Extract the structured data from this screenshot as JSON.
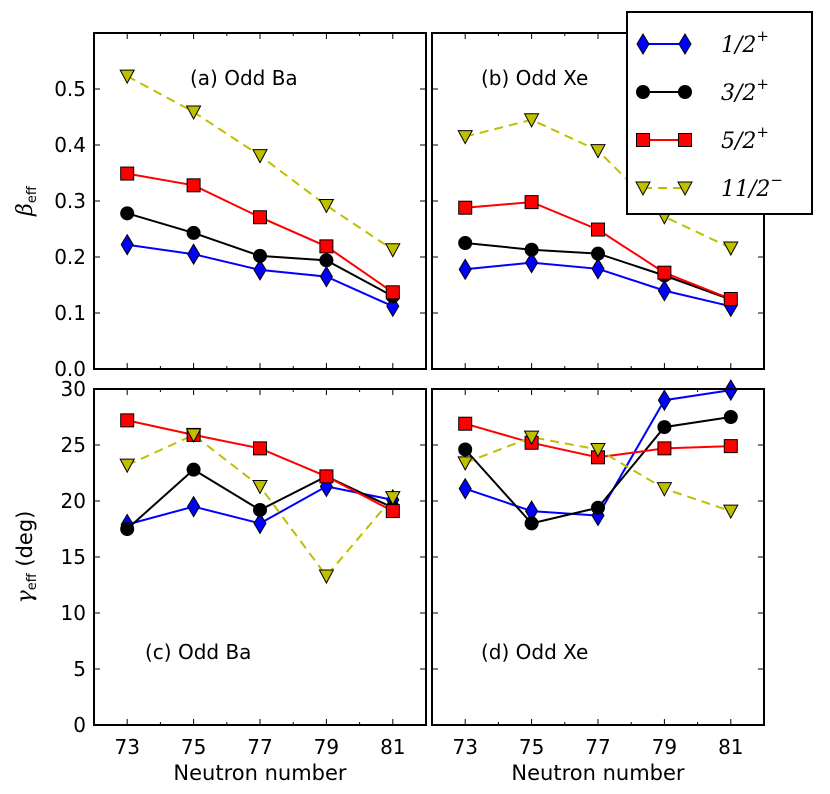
{
  "chart_data": [
    {
      "type": "line",
      "panel": "a",
      "panel_label": "(a) Odd Ba",
      "quantity": "beta",
      "ylabel_symbol": "β",
      "ylabel_sub": "eff",
      "ylim": [
        0.0,
        0.6
      ],
      "yticks": [
        "0.0",
        "0.1",
        "0.2",
        "0.3",
        "0.4",
        "0.5"
      ],
      "x": [
        73,
        75,
        77,
        79,
        81
      ],
      "series": [
        {
          "name": "1/2+",
          "values": [
            0.222,
            0.205,
            0.177,
            0.165,
            0.112
          ]
        },
        {
          "name": "3/2+",
          "values": [
            0.278,
            0.243,
            0.202,
            0.194,
            0.13
          ]
        },
        {
          "name": "5/2+",
          "values": [
            0.349,
            0.328,
            0.271,
            0.219,
            0.137
          ]
        },
        {
          "name": "11/2-",
          "values": [
            0.523,
            0.459,
            0.381,
            0.292,
            0.213
          ]
        }
      ]
    },
    {
      "type": "line",
      "panel": "b",
      "panel_label": "(b) Odd Xe",
      "quantity": "beta",
      "ylim": [
        0.0,
        0.6
      ],
      "x": [
        73,
        75,
        77,
        79,
        81
      ],
      "series": [
        {
          "name": "1/2+",
          "values": [
            0.178,
            0.19,
            0.179,
            0.14,
            0.112
          ]
        },
        {
          "name": "3/2+",
          "values": [
            0.225,
            0.213,
            0.206,
            0.167,
            0.124
          ]
        },
        {
          "name": "5/2+",
          "values": [
            0.288,
            0.298,
            0.249,
            0.172,
            0.125
          ]
        },
        {
          "name": "11/2-",
          "values": [
            0.415,
            0.445,
            0.39,
            0.272,
            0.216
          ]
        }
      ]
    },
    {
      "type": "line",
      "panel": "c",
      "panel_label": "(c) Odd Ba",
      "quantity": "gamma",
      "ylabel_symbol": "γ",
      "ylabel_sub": "eff",
      "ylabel_unit": " (deg)",
      "ylim": [
        0,
        30
      ],
      "yticks": [
        "0",
        "5",
        "10",
        "15",
        "20",
        "25",
        "30"
      ],
      "x": [
        73,
        75,
        77,
        79,
        81
      ],
      "xticks": [
        "73",
        "75",
        "77",
        "79",
        "81"
      ],
      "xlabel": "Neutron number",
      "series": [
        {
          "name": "1/2+",
          "values": [
            17.9,
            19.5,
            18.0,
            21.3,
            20.1
          ]
        },
        {
          "name": "3/2+",
          "values": [
            17.5,
            22.8,
            19.2,
            22.2,
            19.4
          ]
        },
        {
          "name": "5/2+",
          "values": [
            27.2,
            25.9,
            24.7,
            22.2,
            19.1
          ]
        },
        {
          "name": "11/2-",
          "values": [
            23.2,
            25.9,
            21.3,
            13.3,
            20.3
          ]
        }
      ]
    },
    {
      "type": "line",
      "panel": "d",
      "panel_label": "(d) Odd Xe",
      "quantity": "gamma",
      "ylim": [
        0,
        30
      ],
      "x": [
        73,
        75,
        77,
        79,
        81
      ],
      "xticks": [
        "73",
        "75",
        "77",
        "79",
        "81"
      ],
      "xlabel": "Neutron number",
      "series": [
        {
          "name": "1/2+",
          "values": [
            21.1,
            19.1,
            18.7,
            29.0,
            29.9
          ]
        },
        {
          "name": "3/2+",
          "values": [
            24.6,
            18.0,
            19.4,
            26.6,
            27.5
          ]
        },
        {
          "name": "5/2+",
          "values": [
            26.9,
            25.2,
            23.9,
            24.7,
            24.9
          ]
        },
        {
          "name": "11/2-",
          "values": [
            23.4,
            25.7,
            24.6,
            21.1,
            19.1
          ]
        }
      ]
    }
  ],
  "legend": {
    "placement": "top-right",
    "entries": [
      {
        "label": "1/2",
        "sup": "+",
        "marker": "diamond",
        "color": "#0000ff",
        "dashed": false
      },
      {
        "label": "3/2",
        "sup": "+",
        "marker": "circle",
        "color": "#000000",
        "dashed": false
      },
      {
        "label": "5/2",
        "sup": "+",
        "marker": "square",
        "color": "#ff0000",
        "dashed": false
      },
      {
        "label": "11/2",
        "sup": "−",
        "marker": "triangle-down",
        "color": "#bfbf00",
        "dashed": true
      }
    ]
  },
  "colors": {
    "marker_fill": {
      "1/2+": "#0000ff",
      "3/2+": "#000000",
      "5/2+": "#ff0000",
      "11/2-": "#bfbf00"
    },
    "line": {
      "1/2+": "#0000ff",
      "3/2+": "#000000",
      "5/2+": "#ff0000",
      "11/2-": "#bfbf00"
    }
  }
}
